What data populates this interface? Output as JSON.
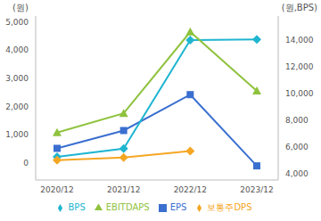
{
  "chart_data": {
    "type": "line",
    "ylabel": "(원)",
    "y2label": "(원,BPS)",
    "categories": [
      "2020/12",
      "2021/12",
      "2022/12",
      "2023/12"
    ],
    "series": [
      {
        "name": "EPS",
        "color": "#3a6fd0",
        "marker": "square",
        "values": [
          520,
          1150,
          2420,
          -100
        ]
      },
      {
        "name": "BPS",
        "color": "#1fb5d0",
        "marker": "diamond",
        "axis": "y2",
        "values": [
          5240,
          5860,
          14000,
          14050
        ]
      },
      {
        "name": "EBITDAPS",
        "color": "#8fc23e",
        "marker": "triangle",
        "values": [
          1080,
          1760,
          4640,
          2550
        ]
      },
      {
        "name": "보통주DPS",
        "color": "#f5a623",
        "marker": "diamond",
        "values": [
          100,
          196,
          425,
          null
        ]
      }
    ],
    "ylim": [
      -600,
      5200
    ],
    "yticks": [
      0,
      {
        "value": 1000,
        "label": "1,000"
      },
      {
        "value": 2000,
        "label": "2,000"
      },
      {
        "value": 3000,
        "label": "3,000"
      },
      {
        "value": 4000,
        "label": "4,000"
      },
      {
        "value": 5000,
        "label": "5,000"
      }
    ],
    "y2lim": [
      3500,
      15800
    ],
    "y2ticks": [
      {
        "value": 4000,
        "label": "4,000"
      },
      {
        "value": 6000,
        "label": "6,000"
      },
      {
        "value": 8000,
        "label": "8,000"
      },
      {
        "value": 10000,
        "label": "10,000"
      },
      {
        "value": 12000,
        "label": "12,000"
      },
      {
        "value": 14000,
        "label": "14,000"
      }
    ],
    "grid": false,
    "legend": "bottom"
  }
}
